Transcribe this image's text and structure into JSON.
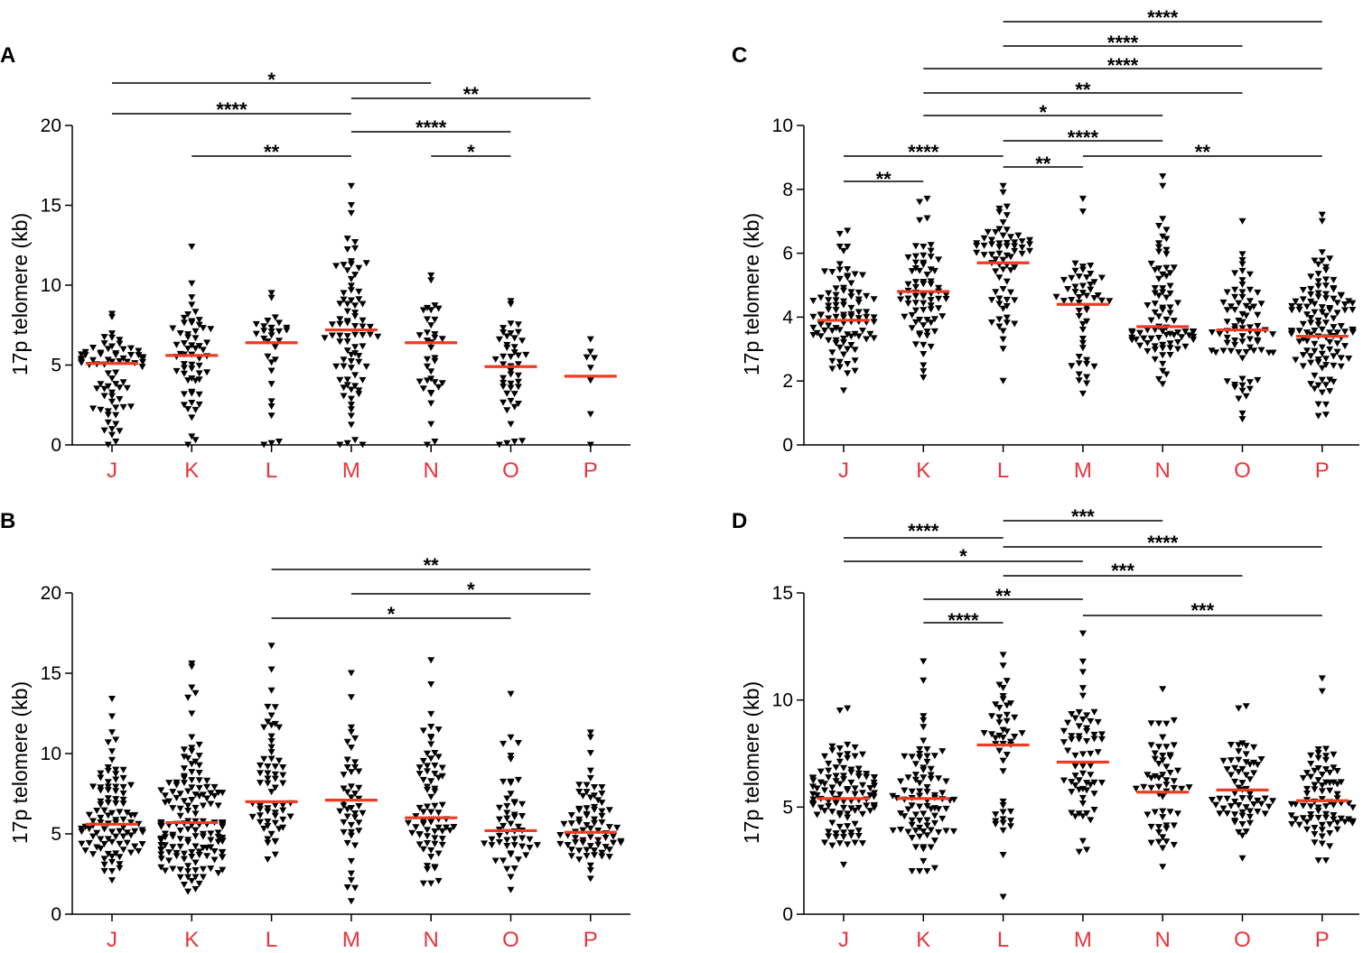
{
  "colors": {
    "median": "#ee3b22",
    "category_label": "#e8343d",
    "points": "#000000"
  },
  "marker": "down-triangle",
  "chart_data": [
    {
      "panel": "A",
      "type": "scatter",
      "ylabel": "17p telomere (kb)",
      "ylim": [
        0,
        20
      ],
      "yticks": [
        0,
        5,
        10,
        15,
        20
      ],
      "categories": [
        "J",
        "K",
        "L",
        "M",
        "N",
        "O",
        "P"
      ],
      "series": [
        {
          "name": "J",
          "n": 74,
          "median": 5.1,
          "min": 0.0,
          "max": 8.2,
          "extremes": [
            0.0,
            0.2,
            0.9,
            1.4,
            8.0,
            8.2
          ]
        },
        {
          "name": "K",
          "n": 60,
          "median": 5.6,
          "min": 0.0,
          "max": 12.4,
          "extremes": [
            0.0,
            0.3,
            1.7,
            10.1,
            12.4
          ]
        },
        {
          "name": "L",
          "n": 30,
          "median": 6.4,
          "min": 0.0,
          "max": 9.5,
          "extremes": [
            0.0,
            0.1,
            0.2,
            2.4,
            9.2,
            9.5
          ]
        },
        {
          "name": "M",
          "n": 82,
          "median": 7.2,
          "min": 0.0,
          "max": 16.2,
          "extremes": [
            0.0,
            0.1,
            0.3,
            12.9,
            14.5,
            15.0,
            16.2
          ]
        },
        {
          "name": "N",
          "n": 36,
          "median": 6.4,
          "min": 0.0,
          "max": 10.6,
          "extremes": [
            0.0,
            0.2,
            3.2,
            10.3,
            10.6
          ]
        },
        {
          "name": "O",
          "n": 46,
          "median": 4.9,
          "min": 0.0,
          "max": 9.0,
          "extremes": [
            0.0,
            0.1,
            0.2,
            8.8,
            9.0
          ]
        },
        {
          "name": "P",
          "n": 8,
          "median": 4.3,
          "min": 0.0,
          "max": 6.6,
          "extremes": [
            0.0,
            6.6
          ]
        }
      ],
      "significance": [
        {
          "from": "J",
          "to": "N",
          "label": "*"
        },
        {
          "from": "M",
          "to": "P",
          "label": "**"
        },
        {
          "from": "J",
          "to": "M",
          "label": "****"
        },
        {
          "from": "M",
          "to": "O",
          "label": "****"
        },
        {
          "from": "K",
          "to": "M",
          "label": "**"
        },
        {
          "from": "N",
          "to": "O",
          "label": "*"
        }
      ]
    },
    {
      "panel": "B",
      "type": "scatter",
      "ylabel": "17p telomere (kb)",
      "ylim": [
        0,
        20
      ],
      "yticks": [
        0,
        5,
        10,
        15,
        20
      ],
      "categories": [
        "J",
        "K",
        "L",
        "M",
        "N",
        "O",
        "P"
      ],
      "series": [
        {
          "name": "J",
          "n": 100,
          "median": 5.6,
          "min": 2.1,
          "max": 13.4,
          "extremes": [
            2.1,
            12.3,
            13.4
          ]
        },
        {
          "name": "K",
          "n": 160,
          "median": 5.7,
          "min": 1.4,
          "max": 15.6,
          "extremes": [
            1.4,
            14.1,
            15.4,
            15.6
          ]
        },
        {
          "name": "L",
          "n": 62,
          "median": 7.0,
          "min": 3.4,
          "max": 16.7,
          "extremes": [
            3.4,
            3.7,
            12.9,
            16.7
          ]
        },
        {
          "name": "M",
          "n": 46,
          "median": 7.1,
          "min": 0.8,
          "max": 15.0,
          "extremes": [
            0.8,
            2.1,
            13.5,
            15.0
          ]
        },
        {
          "name": "N",
          "n": 74,
          "median": 6.0,
          "min": 1.9,
          "max": 15.8,
          "extremes": [
            1.9,
            14.3,
            15.8
          ]
        },
        {
          "name": "O",
          "n": 54,
          "median": 5.2,
          "min": 1.5,
          "max": 13.7,
          "extremes": [
            1.5,
            2.3,
            10.6,
            13.7
          ]
        },
        {
          "name": "P",
          "n": 76,
          "median": 5.1,
          "min": 2.2,
          "max": 11.3,
          "extremes": [
            2.2,
            11.0,
            11.3
          ]
        }
      ],
      "significance": [
        {
          "from": "L",
          "to": "P",
          "label": "**"
        },
        {
          "from": "M",
          "to": "P",
          "label": "*"
        },
        {
          "from": "L",
          "to": "O",
          "label": "*"
        }
      ]
    },
    {
      "panel": "C",
      "type": "scatter",
      "ylabel": "17p telomere (kb)",
      "ylim": [
        0,
        10
      ],
      "yticks": [
        0,
        2,
        4,
        6,
        8,
        10
      ],
      "categories": [
        "J",
        "K",
        "L",
        "M",
        "N",
        "O",
        "P"
      ],
      "series": [
        {
          "name": "J",
          "n": 96,
          "median": 3.9,
          "min": 1.7,
          "max": 6.7,
          "extremes": [
            1.7,
            6.6,
            6.7
          ]
        },
        {
          "name": "K",
          "n": 74,
          "median": 4.8,
          "min": 2.1,
          "max": 7.7,
          "extremes": [
            2.1,
            2.3,
            7.6,
            7.7
          ]
        },
        {
          "name": "L",
          "n": 70,
          "median": 5.7,
          "min": 2.0,
          "max": 8.1,
          "extremes": [
            2.0,
            3.3,
            7.9,
            8.1
          ]
        },
        {
          "name": "M",
          "n": 52,
          "median": 4.4,
          "min": 1.6,
          "max": 7.7,
          "extremes": [
            1.6,
            7.3,
            7.7
          ]
        },
        {
          "name": "N",
          "n": 88,
          "median": 3.7,
          "min": 1.9,
          "max": 8.4,
          "extremes": [
            1.9,
            8.1,
            8.4
          ]
        },
        {
          "name": "O",
          "n": 78,
          "median": 3.6,
          "min": 0.8,
          "max": 7.0,
          "extremes": [
            0.8,
            1.8,
            7.0
          ]
        },
        {
          "name": "P",
          "n": 120,
          "median": 3.4,
          "min": 0.9,
          "max": 7.2,
          "extremes": [
            0.9,
            7.0,
            7.2
          ]
        }
      ],
      "significance": [
        {
          "from": "L",
          "to": "P",
          "label": "****"
        },
        {
          "from": "L",
          "to": "O",
          "label": "****"
        },
        {
          "from": "K",
          "to": "P",
          "label": "****"
        },
        {
          "from": "K",
          "to": "O",
          "label": "**"
        },
        {
          "from": "K",
          "to": "N",
          "label": "*"
        },
        {
          "from": "L",
          "to": "N",
          "label": "****"
        },
        {
          "from": "J",
          "to": "L",
          "label": "****"
        },
        {
          "from": "M",
          "to": "P",
          "label": "**"
        },
        {
          "from": "J",
          "to": "K",
          "label": "**"
        },
        {
          "from": "L",
          "to": "M",
          "label": "**"
        }
      ]
    },
    {
      "panel": "D",
      "type": "scatter",
      "ylabel": "17p telomere (kb)",
      "ylim": [
        0,
        15
      ],
      "yticks": [
        0,
        5,
        10,
        15
      ],
      "categories": [
        "J",
        "K",
        "L",
        "M",
        "N",
        "O",
        "P"
      ],
      "series": [
        {
          "name": "J",
          "n": 112,
          "median": 5.4,
          "min": 2.3,
          "max": 9.6,
          "extremes": [
            2.3,
            9.5,
            9.6
          ]
        },
        {
          "name": "K",
          "n": 90,
          "median": 5.4,
          "min": 2.0,
          "max": 11.8,
          "extremes": [
            2.0,
            10.9,
            11.8
          ]
        },
        {
          "name": "L",
          "n": 48,
          "median": 7.9,
          "min": 0.8,
          "max": 12.1,
          "extremes": [
            0.8,
            4.2,
            11.6,
            12.1
          ]
        },
        {
          "name": "M",
          "n": 64,
          "median": 7.1,
          "min": 2.9,
          "max": 13.1,
          "extremes": [
            2.9,
            11.3,
            13.1
          ]
        },
        {
          "name": "N",
          "n": 58,
          "median": 5.7,
          "min": 2.2,
          "max": 10.5,
          "extremes": [
            2.2,
            8.9,
            10.5
          ]
        },
        {
          "name": "O",
          "n": 66,
          "median": 5.8,
          "min": 2.6,
          "max": 9.7,
          "extremes": [
            2.6,
            9.6,
            9.7
          ]
        },
        {
          "name": "P",
          "n": 84,
          "median": 5.3,
          "min": 2.5,
          "max": 11.0,
          "extremes": [
            2.5,
            10.4,
            11.0
          ]
        }
      ],
      "significance": [
        {
          "from": "L",
          "to": "N",
          "label": "***"
        },
        {
          "from": "J",
          "to": "L",
          "label": "****"
        },
        {
          "from": "L",
          "to": "P",
          "label": "****"
        },
        {
          "from": "J",
          "to": "M",
          "label": "*"
        },
        {
          "from": "L",
          "to": "O",
          "label": "***"
        },
        {
          "from": "K",
          "to": "M",
          "label": "**"
        },
        {
          "from": "K",
          "to": "L",
          "label": "****"
        },
        {
          "from": "M",
          "to": "P",
          "label": "***"
        }
      ]
    }
  ]
}
